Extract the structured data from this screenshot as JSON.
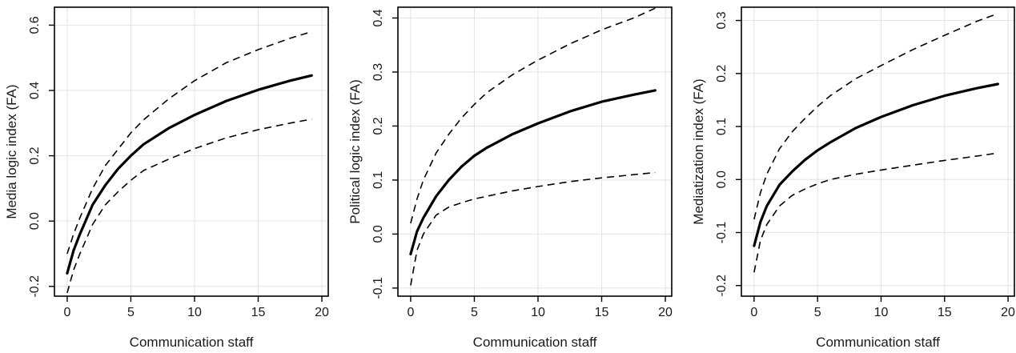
{
  "chart_data": [
    {
      "type": "line",
      "xlabel": "Communication staff",
      "ylabel": "Media logic index (FA)",
      "xlim": [
        -1,
        20.5
      ],
      "ylim": [
        -0.23,
        0.655
      ],
      "xticks": [
        0,
        5,
        10,
        15,
        20
      ],
      "xtick_labels": [
        "0",
        "5",
        "10",
        "15",
        "20"
      ],
      "yticks": [
        -0.2,
        0.0,
        0.2,
        0.4,
        0.6
      ],
      "ytick_labels": [
        "-0.2",
        "0.0",
        "0.2",
        "0.4",
        "0.6"
      ],
      "grid": true,
      "x": [
        0,
        0.5,
        1,
        2,
        3,
        4,
        5,
        6,
        8,
        10,
        12.5,
        15,
        17.5,
        19.2
      ],
      "series": [
        {
          "style": "solid",
          "values": [
            -0.16,
            -0.09,
            -0.04,
            0.05,
            0.11,
            0.16,
            0.2,
            0.235,
            0.285,
            0.325,
            0.368,
            0.402,
            0.43,
            0.446
          ]
        },
        {
          "style": "dashed",
          "values": [
            -0.1,
            -0.04,
            0.01,
            0.1,
            0.17,
            0.22,
            0.27,
            0.31,
            0.375,
            0.43,
            0.485,
            0.525,
            0.56,
            0.58
          ]
        },
        {
          "style": "dashed",
          "values": [
            -0.22,
            -0.15,
            -0.1,
            -0.01,
            0.05,
            0.09,
            0.125,
            0.155,
            0.19,
            0.222,
            0.255,
            0.28,
            0.3,
            0.312
          ]
        }
      ]
    },
    {
      "type": "line",
      "xlabel": "Communication staff",
      "ylabel": "Political logic index (FA)",
      "xlim": [
        -1,
        20.5
      ],
      "ylim": [
        -0.115,
        0.42
      ],
      "xticks": [
        0,
        5,
        10,
        15,
        20
      ],
      "xtick_labels": [
        "0",
        "5",
        "10",
        "15",
        "20"
      ],
      "yticks": [
        -0.1,
        0.0,
        0.1,
        0.2,
        0.3,
        0.4
      ],
      "ytick_labels": [
        "-0.1",
        "0.0",
        "0.1",
        "0.2",
        "0.3",
        "0.4"
      ],
      "grid": true,
      "x": [
        0,
        0.5,
        1,
        2,
        3,
        4,
        5,
        6,
        8,
        10,
        12.5,
        15,
        17.5,
        19.2
      ],
      "series": [
        {
          "style": "solid",
          "values": [
            -0.037,
            0.005,
            0.03,
            0.07,
            0.1,
            0.125,
            0.145,
            0.16,
            0.185,
            0.205,
            0.227,
            0.245,
            0.258,
            0.266
          ]
        },
        {
          "style": "dashed",
          "values": [
            0.02,
            0.065,
            0.1,
            0.15,
            0.185,
            0.215,
            0.24,
            0.262,
            0.295,
            0.322,
            0.352,
            0.378,
            0.4,
            0.418
          ]
        },
        {
          "style": "dashed",
          "values": [
            -0.095,
            -0.03,
            0.0,
            0.035,
            0.05,
            0.058,
            0.065,
            0.07,
            0.08,
            0.088,
            0.097,
            0.104,
            0.11,
            0.114
          ]
        }
      ]
    },
    {
      "type": "line",
      "xlabel": "Communication staff",
      "ylabel": "Mediatization index (FA)",
      "xlim": [
        -1,
        20.5
      ],
      "ylim": [
        -0.22,
        0.325
      ],
      "xticks": [
        0,
        5,
        10,
        15,
        20
      ],
      "xtick_labels": [
        "0",
        "5",
        "10",
        "15",
        "20"
      ],
      "yticks": [
        -0.2,
        -0.1,
        0.0,
        0.1,
        0.2,
        0.3
      ],
      "ytick_labels": [
        "-0.2",
        "-0.1",
        "0.0",
        "0.1",
        "0.2",
        "0.3"
      ],
      "grid": true,
      "x": [
        0,
        0.5,
        1,
        2,
        3,
        4,
        5,
        6,
        8,
        10,
        12.5,
        15,
        17.5,
        19.2
      ],
      "series": [
        {
          "style": "solid",
          "values": [
            -0.125,
            -0.08,
            -0.05,
            -0.01,
            0.015,
            0.037,
            0.055,
            0.07,
            0.097,
            0.118,
            0.14,
            0.158,
            0.172,
            0.18
          ]
        },
        {
          "style": "dashed",
          "values": [
            -0.075,
            -0.025,
            0.01,
            0.058,
            0.09,
            0.115,
            0.138,
            0.158,
            0.19,
            0.215,
            0.245,
            0.272,
            0.298,
            0.313
          ]
        },
        {
          "style": "dashed",
          "values": [
            -0.175,
            -0.115,
            -0.085,
            -0.05,
            -0.03,
            -0.018,
            -0.008,
            0.0,
            0.01,
            0.018,
            0.027,
            0.036,
            0.044,
            0.05
          ]
        }
      ]
    }
  ]
}
